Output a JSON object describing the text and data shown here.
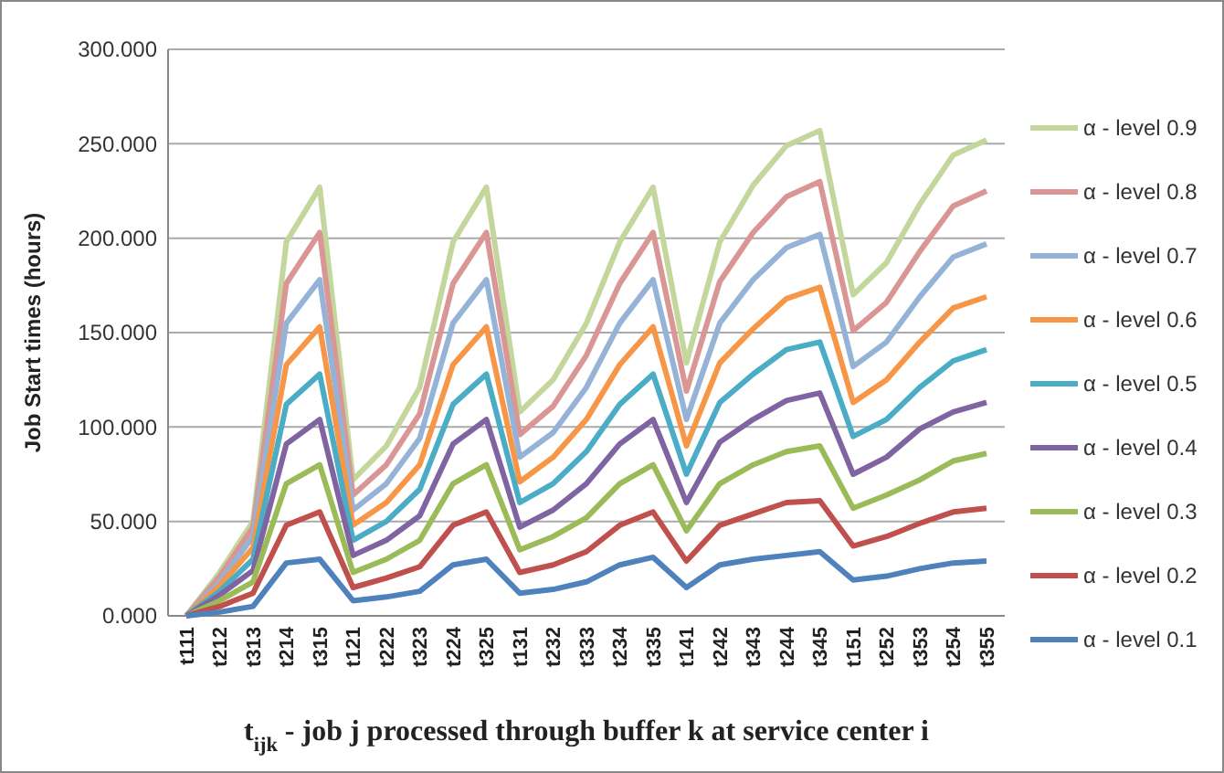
{
  "chart_data": {
    "type": "line",
    "xlabel": "t$_{ijk}$ - job j processed through buffer k at service center i",
    "ylabel": "Job Start times (hours)",
    "categories": [
      "t111",
      "t212",
      "t313",
      "t214",
      "t315",
      "t121",
      "t222",
      "t323",
      "t224",
      "t325",
      "t131",
      "t232",
      "t333",
      "t234",
      "t335",
      "t141",
      "t242",
      "t343",
      "t244",
      "t345",
      "t151",
      "t252",
      "t353",
      "t254",
      "t355"
    ],
    "series": [
      {
        "name": "α - level 0.9",
        "color": "#c3d69b",
        "values": [
          0,
          23,
          50,
          198,
          227,
          72,
          90,
          121,
          198,
          227,
          108,
          125,
          155,
          198,
          227,
          134,
          198,
          228,
          249,
          257,
          170,
          187,
          218,
          244,
          252
        ]
      },
      {
        "name": "α - level 0.8",
        "color": "#d99694",
        "values": [
          0,
          21,
          47,
          176,
          203,
          64,
          80,
          107,
          176,
          203,
          96,
          111,
          138,
          176,
          203,
          119,
          177,
          203,
          222,
          230,
          151,
          166,
          193,
          217,
          225
        ]
      },
      {
        "name": "α - level 0.7",
        "color": "#95b3d7",
        "values": [
          0,
          18,
          42,
          155,
          178,
          56,
          70,
          94,
          155,
          178,
          84,
          97,
          121,
          155,
          178,
          104,
          155,
          178,
          195,
          202,
          132,
          145,
          169,
          190,
          197
        ]
      },
      {
        "name": "α - level 0.6",
        "color": "#f79646",
        "values": [
          0,
          16,
          36,
          133,
          153,
          48,
          60,
          80,
          133,
          153,
          71,
          84,
          104,
          133,
          153,
          90,
          134,
          152,
          168,
          174,
          113,
          125,
          145,
          163,
          169
        ]
      },
      {
        "name": "α - level 0.5",
        "color": "#4bacc6",
        "values": [
          0,
          13,
          30,
          112,
          128,
          40,
          50,
          67,
          112,
          128,
          60,
          70,
          87,
          112,
          128,
          75,
          113,
          128,
          141,
          145,
          95,
          104,
          121,
          135,
          141
        ]
      },
      {
        "name": "α - level 0.4",
        "color": "#8064a2",
        "values": [
          0,
          11,
          24,
          91,
          104,
          32,
          40,
          53,
          91,
          104,
          47,
          56,
          70,
          91,
          104,
          60,
          92,
          104,
          114,
          118,
          75,
          84,
          99,
          108,
          113
        ]
      },
      {
        "name": "α - level 0.3",
        "color": "#9bbb59",
        "values": [
          0,
          8,
          18,
          70,
          80,
          23,
          30,
          40,
          70,
          80,
          35,
          42,
          52,
          70,
          80,
          45,
          70,
          80,
          87,
          90,
          57,
          64,
          72,
          82,
          86
        ]
      },
      {
        "name": "α - level 0.2",
        "color": "#c0504d",
        "values": [
          0,
          5,
          12,
          48,
          55,
          15,
          20,
          26,
          48,
          55,
          23,
          27,
          34,
          48,
          55,
          29,
          48,
          54,
          60,
          61,
          37,
          42,
          49,
          55,
          57
        ]
      },
      {
        "name": "α - level 0.1",
        "color": "#4f81bd",
        "values": [
          0,
          2,
          5,
          28,
          30,
          8,
          10,
          13,
          27,
          30,
          12,
          14,
          18,
          27,
          31,
          15,
          27,
          30,
          32,
          34,
          19,
          21,
          25,
          28,
          29
        ]
      }
    ],
    "ylim": [
      0,
      300
    ],
    "yticks": [
      {
        "value": 0,
        "label": "0.000"
      },
      {
        "value": 50,
        "label": "50.000"
      },
      {
        "value": 100,
        "label": "100.000"
      },
      {
        "value": 150,
        "label": "150.000"
      },
      {
        "value": 200,
        "label": "200.000"
      },
      {
        "value": 250,
        "label": "250.000"
      },
      {
        "value": 300,
        "label": "300.000"
      }
    ],
    "grid": "y",
    "legend": "right",
    "marker": "none",
    "line_style": "solid"
  }
}
